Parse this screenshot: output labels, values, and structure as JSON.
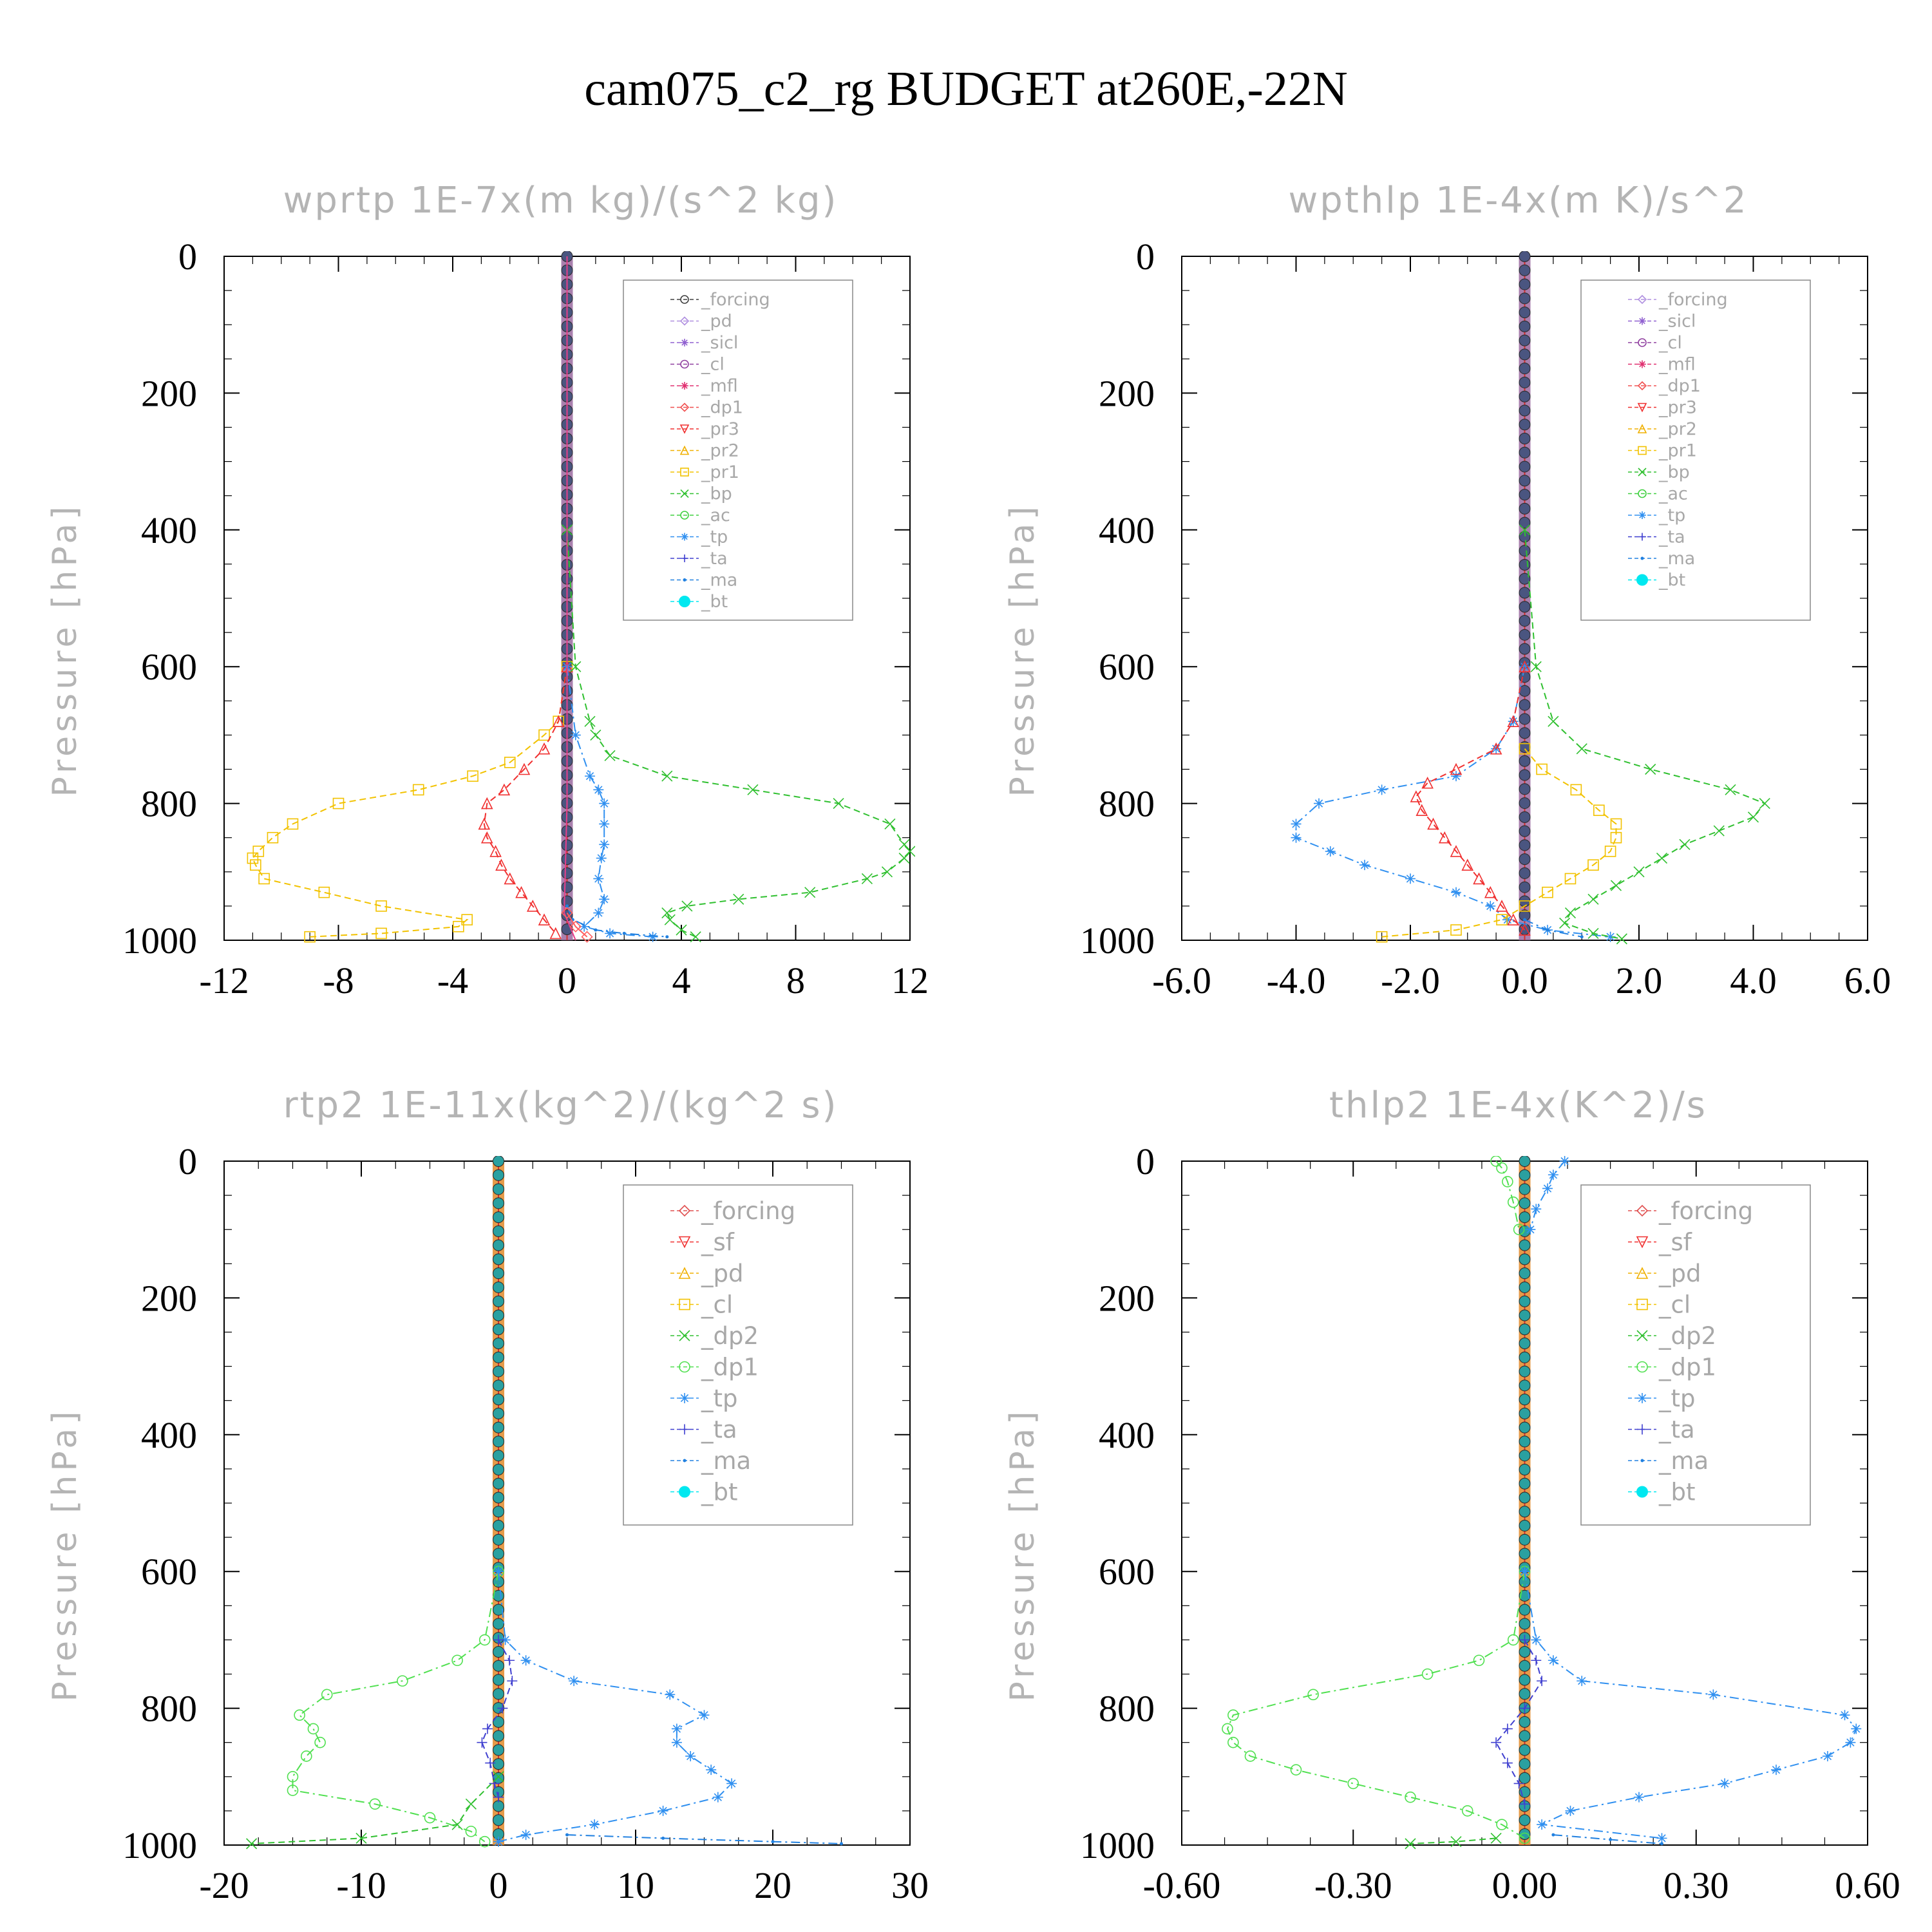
{
  "title": "cam075_c2_rg  BUDGET at260E,-22N",
  "chart_data": [
    {
      "type": "line",
      "title": "wprtp   1E-7x(m kg)/(s^2 kg)",
      "ylabel": "Pressure [hPa]",
      "xlim": [
        -12,
        12
      ],
      "ylim": [
        1000,
        0
      ],
      "xticks": [
        "-12",
        "-8",
        "-4",
        "0",
        "4",
        "8",
        "12"
      ],
      "xtick_values": [
        -12,
        -8,
        -4,
        0,
        4,
        8,
        12
      ],
      "yticks": [
        "0",
        "200",
        "400",
        "600",
        "800",
        "1000"
      ],
      "ytick_values": [
        0,
        200,
        400,
        600,
        800,
        1000
      ],
      "legend": [
        "_forcing",
        "_pd",
        "_sicl",
        "_cl",
        "_mfl",
        "_dp1",
        "_pr3",
        "_pr2",
        "_pr1",
        "_bp",
        "_ac",
        "_tp",
        "_ta",
        "_ma",
        "_bt"
      ],
      "series": [
        {
          "name": "_pr1",
          "color": "#f2c200",
          "marker": "square",
          "dash": "10 6",
          "p": [
            600,
            680,
            700,
            740,
            760,
            780,
            800,
            830,
            850,
            870,
            880,
            890,
            910,
            930,
            950,
            970,
            980,
            990,
            995
          ],
          "x": [
            0,
            -0.3,
            -0.8,
            -2,
            -3.3,
            -5.2,
            -8,
            -9.6,
            -10.3,
            -10.8,
            -11,
            -10.9,
            -10.6,
            -8.5,
            -6.5,
            -3.5,
            -3.8,
            -6.5,
            -9
          ]
        },
        {
          "name": "_pr3",
          "color": "#f03030",
          "marker": "triangle",
          "dash": "10 6",
          "p": [
            600,
            680,
            720,
            750,
            780,
            800,
            830,
            850,
            870,
            890,
            910,
            930,
            950,
            970,
            990
          ],
          "x": [
            0,
            -0.3,
            -0.8,
            -1.5,
            -2.2,
            -2.8,
            -2.9,
            -2.8,
            -2.5,
            -2.3,
            -2,
            -1.6,
            -1.2,
            -0.8,
            -0.4
          ]
        },
        {
          "name": "_bp",
          "color": "#30c030",
          "marker": "x",
          "dash": "10 6",
          "p": [
            400,
            600,
            680,
            700,
            730,
            760,
            780,
            800,
            830,
            860,
            870,
            880,
            900,
            910,
            930,
            940,
            950,
            960,
            970,
            985,
            995
          ],
          "x": [
            0,
            0.3,
            0.8,
            1,
            1.5,
            3.5,
            6.5,
            9.5,
            11.3,
            11.8,
            12,
            11.8,
            11.2,
            10.5,
            8.5,
            6,
            4.2,
            3.5,
            3.6,
            4,
            4.5
          ]
        },
        {
          "name": "_tp",
          "color": "#3090f0",
          "marker": "star",
          "dash": "14 6 3 6",
          "p": [
            600,
            700,
            760,
            780,
            800,
            830,
            860,
            880,
            910,
            940,
            960,
            980,
            990,
            995
          ],
          "x": [
            0,
            0.3,
            0.8,
            1.1,
            1.3,
            1.3,
            1.3,
            1.2,
            1.1,
            1.3,
            1.1,
            0.6,
            1.5,
            3
          ]
        },
        {
          "name": "_ma",
          "color": "#2080e0",
          "marker": "dot",
          "dash": "14 6 3 6",
          "p": [
            950,
            970,
            985,
            990,
            995
          ],
          "x": [
            0,
            0.2,
            1,
            2,
            3.5
          ]
        },
        {
          "name": "_mfl",
          "color": "#e8408a",
          "marker": "none",
          "dash": "",
          "p": [
            0,
            800,
            960,
            990,
            1000
          ],
          "x": [
            0,
            0,
            -0.1,
            0.2,
            0.3
          ]
        },
        {
          "name": "_dp1",
          "color": "#ff6060",
          "marker": "diamond",
          "dash": "",
          "p": [
            960,
            980,
            995
          ],
          "x": [
            0,
            0.3,
            0.7
          ]
        }
      ],
      "center_column": {
        "color": "#4a5a85",
        "marker_color": "#4a5580",
        "band_color": "#9a6aa0"
      },
      "legend_colors": [
        "#404040",
        "#b090e0",
        "#9060d0",
        "#9040a0",
        "#e03070",
        "#f05050",
        "#f03030",
        "#f0b000",
        "#f2c200",
        "#30c030",
        "#40d040",
        "#3090f0",
        "#4040d0",
        "#2080e0",
        "#00e8f0"
      ],
      "legend_markers": [
        "circle",
        "diamond",
        "star",
        "circle",
        "star",
        "diamond",
        "triangle-down",
        "triangle",
        "square",
        "x",
        "circle",
        "star",
        "plus",
        "dot",
        "bigdot"
      ]
    },
    {
      "type": "line",
      "title": "wpthlp   1E-4x(m K)/s^2",
      "ylabel": "Pressure [hPa]",
      "xlim": [
        -6,
        6
      ],
      "ylim": [
        1000,
        0
      ],
      "xticks": [
        "-6.0",
        "-4.0",
        "-2.0",
        "0.0",
        "2.0",
        "4.0",
        "6.0"
      ],
      "xtick_values": [
        -6,
        -4,
        -2,
        0,
        2,
        4,
        6
      ],
      "yticks": [
        "0",
        "200",
        "400",
        "600",
        "800",
        "1000"
      ],
      "ytick_values": [
        0,
        200,
        400,
        600,
        800,
        1000
      ],
      "legend": [
        "_forcing",
        "_sicl",
        "_cl",
        "_mfl",
        "_dp1",
        "_pr3",
        "_pr2",
        "_pr1",
        "_bp",
        "_ac",
        "_tp",
        "_ta",
        "_ma",
        "_bt"
      ],
      "series": [
        {
          "name": "_tp",
          "color": "#3090f0",
          "marker": "star",
          "dash": "14 6 3 6",
          "p": [
            600,
            680,
            720,
            760,
            780,
            800,
            830,
            850,
            870,
            890,
            910,
            930,
            950,
            970,
            985,
            995
          ],
          "x": [
            0,
            -0.2,
            -0.5,
            -1.2,
            -2.5,
            -3.6,
            -4,
            -4,
            -3.4,
            -2.8,
            -2,
            -1.2,
            -0.6,
            -0.3,
            0.4,
            1.5
          ]
        },
        {
          "name": "_pr3",
          "color": "#f03030",
          "marker": "triangle",
          "dash": "10 6",
          "p": [
            600,
            680,
            720,
            750,
            770,
            790,
            810,
            830,
            850,
            870,
            890,
            910,
            930,
            950,
            970,
            985
          ],
          "x": [
            0,
            -0.2,
            -0.5,
            -1.2,
            -1.7,
            -1.9,
            -1.8,
            -1.6,
            -1.4,
            -1.2,
            -1,
            -0.8,
            -0.6,
            -0.4,
            -0.2,
            0
          ]
        },
        {
          "name": "_pr1",
          "color": "#f2c200",
          "marker": "square",
          "dash": "10 6",
          "p": [
            720,
            750,
            780,
            810,
            830,
            850,
            870,
            890,
            910,
            930,
            950,
            970,
            985,
            995
          ],
          "x": [
            0,
            0.3,
            0.9,
            1.3,
            1.6,
            1.6,
            1.5,
            1.2,
            0.8,
            0.4,
            0,
            -0.4,
            -1.2,
            -2.5
          ]
        },
        {
          "name": "_bp",
          "color": "#30c030",
          "marker": "x",
          "dash": "10 6",
          "p": [
            400,
            600,
            680,
            720,
            750,
            780,
            800,
            820,
            840,
            860,
            880,
            900,
            920,
            940,
            960,
            975,
            990,
            998
          ],
          "x": [
            0,
            0.2,
            0.5,
            1,
            2.2,
            3.6,
            4.2,
            4,
            3.4,
            2.8,
            2.4,
            2,
            1.6,
            1.2,
            0.8,
            0.7,
            1.2,
            1.7
          ]
        },
        {
          "name": "_ma",
          "color": "#2080e0",
          "marker": "dot",
          "dash": "14 6 3 6",
          "p": [
            970,
            985,
            995
          ],
          "x": [
            0,
            0.4,
            1
          ]
        }
      ],
      "center_column": {
        "color": "#4a5a85",
        "marker_color": "#4a5580",
        "band_color": "#9a6aa0"
      },
      "legend_colors": [
        "#b090e0",
        "#9060d0",
        "#9040a0",
        "#e03070",
        "#f05050",
        "#f03030",
        "#f0b000",
        "#f2c200",
        "#30c030",
        "#40d040",
        "#3090f0",
        "#4040d0",
        "#2080e0",
        "#00e8f0"
      ],
      "legend_markers": [
        "diamond",
        "star",
        "circle",
        "star",
        "diamond",
        "triangle-down",
        "triangle",
        "square",
        "x",
        "circle",
        "star",
        "plus",
        "dot",
        "bigdot"
      ]
    },
    {
      "type": "line",
      "title": "rtp2   1E-11x(kg^2)/(kg^2 s)",
      "ylabel": "Pressure [hPa]",
      "xlim": [
        -20,
        30
      ],
      "ylim": [
        1000,
        0
      ],
      "xticks": [
        "-20",
        "-10",
        "0",
        "10",
        "20",
        "30"
      ],
      "xtick_values": [
        -20,
        -10,
        0,
        10,
        20,
        30
      ],
      "yticks": [
        "0",
        "200",
        "400",
        "600",
        "800",
        "1000"
      ],
      "ytick_values": [
        0,
        200,
        400,
        600,
        800,
        1000
      ],
      "legend": [
        "_forcing",
        "_sf",
        "_pd",
        "_cl",
        "_dp2",
        "_dp1",
        "_tp",
        "_ta",
        "_ma",
        "_bt"
      ],
      "series": [
        {
          "name": "_dp1",
          "color": "#50e050",
          "marker": "circle",
          "dash": "14 6 3 6",
          "p": [
            600,
            700,
            730,
            760,
            780,
            810,
            830,
            850,
            870,
            900,
            920,
            940,
            960,
            980,
            995
          ],
          "x": [
            0,
            -1,
            -3,
            -7,
            -12.5,
            -14.5,
            -13.5,
            -13,
            -14,
            -15,
            -15,
            -9,
            -5,
            -2,
            -1
          ]
        },
        {
          "name": "_tp",
          "color": "#3090f0",
          "marker": "star",
          "dash": "14 6 3 6",
          "p": [
            600,
            700,
            730,
            760,
            780,
            810,
            830,
            850,
            870,
            890,
            910,
            930,
            950,
            970,
            985,
            995
          ],
          "x": [
            0,
            0.5,
            2,
            5.5,
            12.5,
            15,
            13,
            13,
            14,
            15.5,
            17,
            16,
            12,
            7,
            2,
            0
          ]
        },
        {
          "name": "_ta",
          "color": "#4040d0",
          "marker": "plus",
          "dash": "10 6",
          "p": [
            700,
            730,
            760,
            800,
            830,
            850,
            880,
            910,
            930
          ],
          "x": [
            0,
            0.8,
            1,
            0.3,
            -0.8,
            -1.2,
            -0.6,
            -0.3,
            0
          ]
        },
        {
          "name": "_ma",
          "color": "#2080e0",
          "marker": "dot",
          "dash": "14 6 3 6",
          "p": [
            985,
            990,
            995,
            998
          ],
          "x": [
            5,
            12,
            20,
            25
          ]
        },
        {
          "name": "_dp2",
          "color": "#30c030",
          "marker": "x",
          "dash": "10 6",
          "p": [
            900,
            940,
            970,
            990,
            998
          ],
          "x": [
            0,
            -2,
            -3,
            -10,
            -18
          ]
        }
      ],
      "center_column": {
        "color": "#2aa0a0",
        "marker_color": "#2aa0a0",
        "band_color": "#e08a2a"
      },
      "legend_colors": [
        "#e05050",
        "#f03030",
        "#f0b000",
        "#f2c200",
        "#30c030",
        "#50e050",
        "#3090f0",
        "#4040d0",
        "#2080e0",
        "#00e8f0"
      ],
      "legend_markers": [
        "diamond",
        "triangle-down",
        "triangle",
        "square",
        "x",
        "circle",
        "star",
        "plus",
        "dot",
        "bigdot"
      ]
    },
    {
      "type": "line",
      "title": "thlp2   1E-4x(K^2)/s",
      "ylabel": "Pressure [hPa]",
      "xlim": [
        -0.6,
        0.6
      ],
      "ylim": [
        1000,
        0
      ],
      "xticks": [
        "-0.60",
        "-0.30",
        "0.00",
        "0.30",
        "0.60"
      ],
      "xtick_values": [
        -0.6,
        -0.3,
        0,
        0.3,
        0.6
      ],
      "yticks": [
        "0",
        "200",
        "400",
        "600",
        "800",
        "1000"
      ],
      "ytick_values": [
        0,
        200,
        400,
        600,
        800,
        1000
      ],
      "legend": [
        "_forcing",
        "_sf",
        "_pd",
        "_cl",
        "_dp2",
        "_dp1",
        "_tp",
        "_ta",
        "_ma",
        "_bt"
      ],
      "series": [
        {
          "name": "_dp1",
          "color": "#50e050",
          "marker": "circle",
          "dash": "14 6 3 6",
          "p": [
            600,
            700,
            730,
            750,
            780,
            810,
            830,
            850,
            870,
            890,
            910,
            930,
            950,
            970,
            990
          ],
          "x": [
            0,
            -0.02,
            -0.08,
            -0.17,
            -0.37,
            -0.51,
            -0.52,
            -0.51,
            -0.48,
            -0.4,
            -0.3,
            -0.2,
            -0.1,
            -0.04,
            0
          ]
        },
        {
          "name": "_tp",
          "color": "#3090f0",
          "marker": "star",
          "dash": "14 6 3 6",
          "p": [
            600,
            700,
            730,
            760,
            780,
            810,
            830,
            850,
            870,
            890,
            910,
            930,
            950,
            970,
            990
          ],
          "x": [
            0,
            0.02,
            0.05,
            0.1,
            0.33,
            0.56,
            0.58,
            0.57,
            0.53,
            0.44,
            0.35,
            0.2,
            0.08,
            0.03,
            0.24
          ]
        },
        {
          "name": "_ta",
          "color": "#4040d0",
          "marker": "plus",
          "dash": "10 6",
          "p": [
            700,
            730,
            760,
            800,
            830,
            850,
            880,
            910,
            940
          ],
          "x": [
            0,
            0.02,
            0.03,
            0,
            -0.03,
            -0.05,
            -0.03,
            -0.01,
            0
          ]
        },
        {
          "name": "_dp1_top",
          "color": "#50e050",
          "marker": "circle",
          "dash": "14 6 3 6",
          "p": [
            0,
            10,
            30,
            60,
            100
          ],
          "x": [
            -0.05,
            -0.04,
            -0.03,
            -0.02,
            -0.01
          ]
        },
        {
          "name": "_tp_top",
          "color": "#3090f0",
          "marker": "star",
          "dash": "14 6 3 6",
          "p": [
            0,
            20,
            40,
            70,
            100
          ],
          "x": [
            0.07,
            0.05,
            0.04,
            0.02,
            0.01
          ]
        },
        {
          "name": "_ma",
          "color": "#2080e0",
          "marker": "dot",
          "dash": "14 6 3 6",
          "p": [
            985,
            992,
            998
          ],
          "x": [
            0.05,
            0.15,
            0.24
          ]
        },
        {
          "name": "_dp2",
          "color": "#30c030",
          "marker": "x",
          "dash": "10 6",
          "p": [
            990,
            995,
            998
          ],
          "x": [
            -0.05,
            -0.12,
            -0.2
          ]
        }
      ],
      "center_column": {
        "color": "#2aa0a0",
        "marker_color": "#2aa0a0",
        "band_color": "#e08a2a"
      },
      "legend_colors": [
        "#e05050",
        "#f03030",
        "#f0b000",
        "#f2c200",
        "#30c030",
        "#50e050",
        "#3090f0",
        "#4040d0",
        "#2080e0",
        "#00e8f0"
      ],
      "legend_markers": [
        "diamond",
        "triangle-down",
        "triangle",
        "square",
        "x",
        "circle",
        "star",
        "plus",
        "dot",
        "bigdot"
      ]
    }
  ]
}
